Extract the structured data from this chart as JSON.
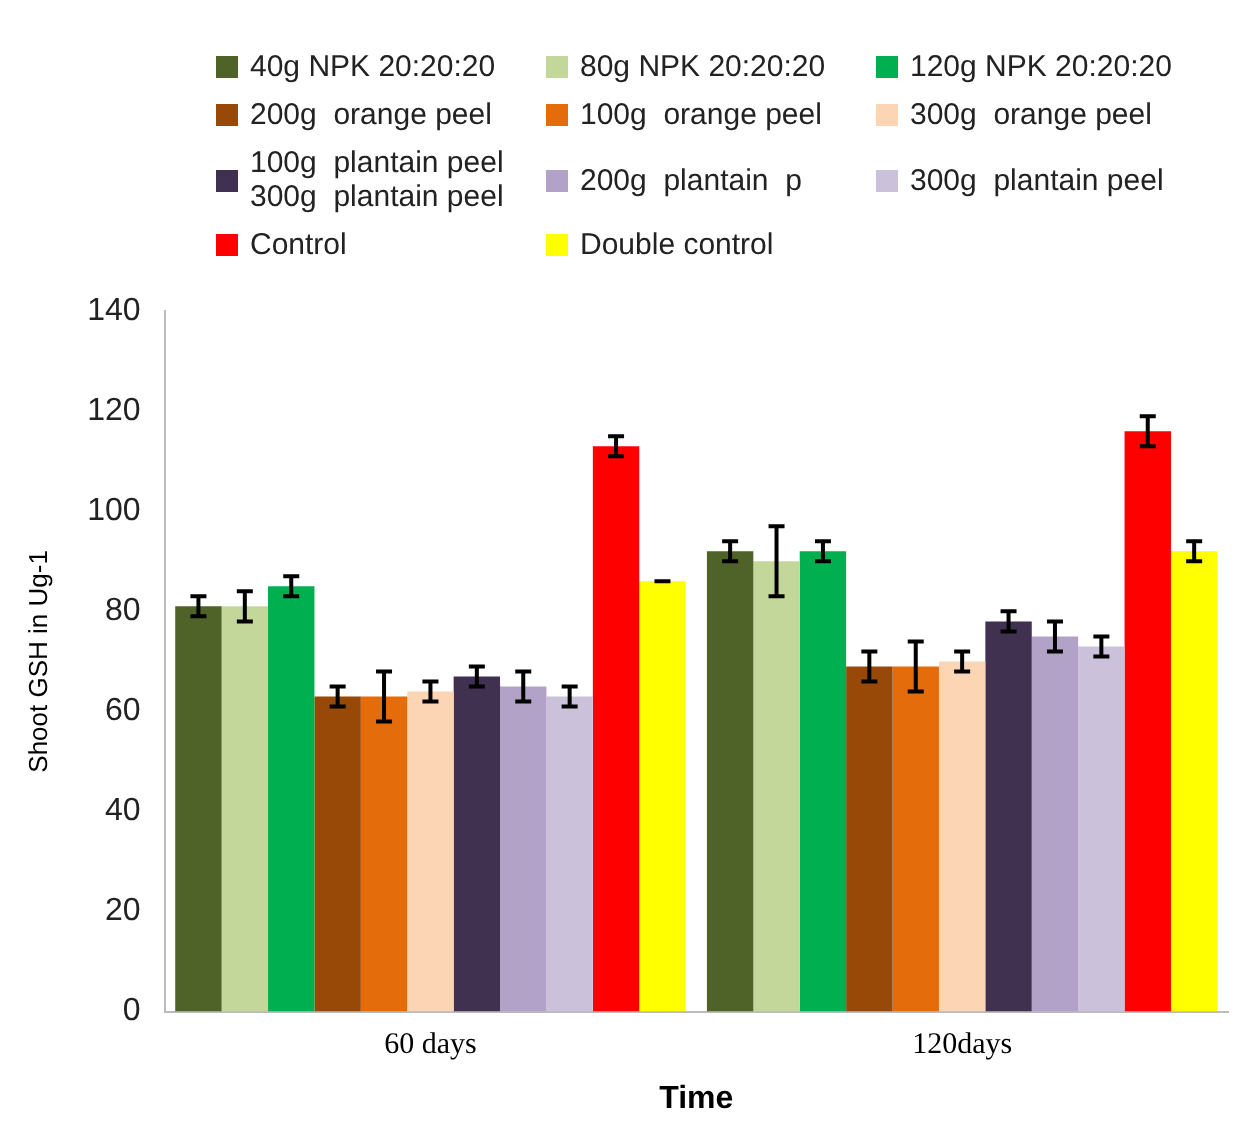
{
  "chart_data": {
    "type": "bar",
    "xlabel": "Time",
    "ylabel": "Shoot GSH in Ug-1",
    "categories": [
      "60 days",
      "120days"
    ],
    "ylim": [
      0,
      140
    ],
    "yticks": [
      0,
      20,
      40,
      60,
      80,
      100,
      120,
      140
    ],
    "grid": false,
    "legend": "top",
    "series": [
      {
        "name": "40g NPK 20:20:20",
        "color": "#4f6228",
        "values": [
          81,
          92
        ],
        "errors": [
          2,
          2
        ]
      },
      {
        "name": "80g NPK 20:20:20",
        "color": "#c4d79b",
        "values": [
          81,
          90
        ],
        "errors": [
          3,
          7
        ]
      },
      {
        "name": "120g NPK 20:20:20",
        "color": "#00b050",
        "values": [
          85,
          92
        ],
        "errors": [
          2,
          2
        ]
      },
      {
        "name": "200g  orange peel",
        "color": "#984807",
        "values": [
          63,
          69
        ],
        "errors": [
          2,
          3
        ]
      },
      {
        "name": "100g  orange peel",
        "color": "#e46c0a",
        "values": [
          63,
          69
        ],
        "errors": [
          5,
          5
        ]
      },
      {
        "name": "300g  orange peel",
        "color": "#fcd5b5",
        "values": [
          64,
          70
        ],
        "errors": [
          2,
          2
        ]
      },
      {
        "name": "100g  plantain peel\n300g  plantain peel",
        "color": "#403151",
        "values": [
          67,
          78
        ],
        "errors": [
          2,
          2
        ]
      },
      {
        "name": "200g  plantain  p",
        "color": "#b3a2c7",
        "values": [
          65,
          75
        ],
        "errors": [
          3,
          3
        ]
      },
      {
        "name": "300g  plantain peel",
        "color": "#ccc1da",
        "values": [
          63,
          73
        ],
        "errors": [
          2,
          2
        ]
      },
      {
        "name": "Control",
        "color": "#ff0000",
        "values": [
          113,
          116
        ],
        "errors": [
          2,
          3
        ]
      },
      {
        "name": "Double control",
        "color": "#ffff00",
        "values": [
          86,
          92
        ],
        "errors": [
          0,
          2
        ]
      }
    ]
  }
}
